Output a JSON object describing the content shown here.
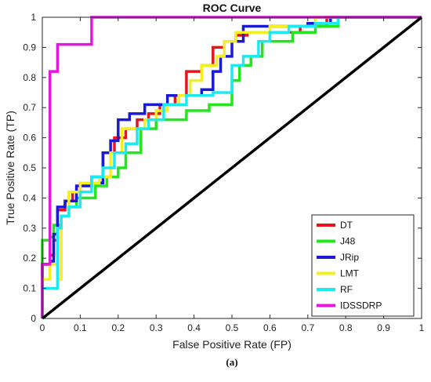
{
  "chart_data": {
    "type": "line",
    "title": "ROC Curve",
    "xlabel": "False Positive Rate (FP)",
    "ylabel": "True Positive Rate (TP)",
    "xlim": [
      0,
      1
    ],
    "ylim": [
      0,
      1
    ],
    "xticks": [
      "0",
      "0.1",
      "0.2",
      "0.3",
      "0.4",
      "0.5",
      "0.6",
      "0.7",
      "0.8",
      "0.9",
      "1"
    ],
    "yticks": [
      "0",
      "0.1",
      "0.2",
      "0.3",
      "0.4",
      "0.5",
      "0.6",
      "0.7",
      "0.8",
      "0.9",
      "1"
    ],
    "xtick_values": [
      0,
      0.1,
      0.2,
      0.3,
      0.4,
      0.5,
      0.6,
      0.7,
      0.8,
      0.9,
      1
    ],
    "ytick_values": [
      0,
      0.1,
      0.2,
      0.3,
      0.4,
      0.5,
      0.6,
      0.7,
      0.8,
      0.9,
      1
    ],
    "grid": false,
    "legend_position": "bottom-right",
    "caption": "(a)",
    "series": [
      {
        "name": "DT",
        "color": "#e8141c",
        "x": [
          0,
          0,
          0.02,
          0.02,
          0.03,
          0.03,
          0.04,
          0.04,
          0.06,
          0.06,
          0.08,
          0.08,
          0.1,
          0.1,
          0.13,
          0.13,
          0.16,
          0.16,
          0.19,
          0.19,
          0.22,
          0.22,
          0.25,
          0.25,
          0.28,
          0.28,
          0.31,
          0.31,
          0.35,
          0.35,
          0.38,
          0.38,
          0.42,
          0.42,
          0.45,
          0.45,
          0.48,
          0.48,
          0.51,
          0.51,
          0.54,
          0.54,
          0.58,
          0.58,
          0.62,
          0.62,
          0.68,
          0.68,
          0.75,
          0.75,
          1
        ],
        "y": [
          0,
          0.18,
          0.18,
          0.21,
          0.21,
          0.26,
          0.26,
          0.36,
          0.36,
          0.39,
          0.39,
          0.42,
          0.42,
          0.45,
          0.45,
          0.47,
          0.47,
          0.55,
          0.55,
          0.6,
          0.6,
          0.63,
          0.63,
          0.66,
          0.66,
          0.68,
          0.68,
          0.71,
          0.71,
          0.74,
          0.74,
          0.82,
          0.82,
          0.84,
          0.84,
          0.9,
          0.9,
          0.92,
          0.92,
          0.94,
          0.94,
          0.95,
          0.95,
          0.95,
          0.95,
          0.95,
          0.95,
          0.97,
          0.97,
          1,
          1
        ]
      },
      {
        "name": "J48",
        "color": "#23e61e",
        "x": [
          0,
          0,
          0.02,
          0.02,
          0.03,
          0.03,
          0.05,
          0.05,
          0.07,
          0.07,
          0.09,
          0.09,
          0.14,
          0.14,
          0.17,
          0.17,
          0.2,
          0.2,
          0.22,
          0.22,
          0.26,
          0.26,
          0.3,
          0.3,
          0.38,
          0.38,
          0.44,
          0.44,
          0.5,
          0.5,
          0.52,
          0.52,
          0.55,
          0.55,
          0.58,
          0.58,
          0.66,
          0.66,
          0.72,
          0.72,
          0.78,
          0.78,
          1
        ],
        "y": [
          0,
          0.26,
          0.26,
          0.27,
          0.27,
          0.31,
          0.31,
          0.34,
          0.34,
          0.37,
          0.37,
          0.4,
          0.4,
          0.44,
          0.44,
          0.47,
          0.47,
          0.5,
          0.5,
          0.55,
          0.55,
          0.63,
          0.63,
          0.66,
          0.66,
          0.69,
          0.69,
          0.71,
          0.71,
          0.79,
          0.79,
          0.84,
          0.84,
          0.87,
          0.87,
          0.92,
          0.92,
          0.95,
          0.95,
          0.97,
          0.97,
          1,
          1
        ]
      },
      {
        "name": "JRip",
        "color": "#1a1ad6",
        "x": [
          0,
          0,
          0.02,
          0.02,
          0.03,
          0.03,
          0.04,
          0.04,
          0.06,
          0.06,
          0.09,
          0.09,
          0.13,
          0.13,
          0.16,
          0.16,
          0.18,
          0.18,
          0.2,
          0.2,
          0.23,
          0.23,
          0.27,
          0.27,
          0.3,
          0.3,
          0.33,
          0.33,
          0.37,
          0.37,
          0.42,
          0.42,
          0.45,
          0.45,
          0.47,
          0.47,
          0.5,
          0.5,
          0.53,
          0.53,
          0.57,
          0.57,
          0.63,
          0.63,
          0.7,
          0.7,
          0.76,
          0.76,
          1
        ],
        "y": [
          0,
          0.18,
          0.18,
          0.19,
          0.19,
          0.28,
          0.28,
          0.37,
          0.37,
          0.39,
          0.39,
          0.44,
          0.44,
          0.45,
          0.45,
          0.55,
          0.55,
          0.59,
          0.59,
          0.66,
          0.66,
          0.68,
          0.68,
          0.71,
          0.71,
          0.71,
          0.71,
          0.74,
          0.74,
          0.74,
          0.74,
          0.76,
          0.76,
          0.82,
          0.82,
          0.87,
          0.87,
          0.92,
          0.92,
          0.97,
          0.97,
          0.97,
          0.97,
          0.97,
          0.97,
          0.98,
          0.98,
          1,
          1
        ]
      },
      {
        "name": "LMT",
        "color": "#f5ef1f",
        "x": [
          0,
          0,
          0.02,
          0.02,
          0.04,
          0.04,
          0.05,
          0.05,
          0.07,
          0.07,
          0.1,
          0.1,
          0.15,
          0.15,
          0.18,
          0.18,
          0.21,
          0.21,
          0.24,
          0.24,
          0.27,
          0.27,
          0.3,
          0.3,
          0.33,
          0.33,
          0.36,
          0.36,
          0.39,
          0.39,
          0.42,
          0.42,
          0.46,
          0.46,
          0.48,
          0.48,
          0.51,
          0.51,
          0.56,
          0.56,
          0.6,
          0.6,
          0.66,
          0.66,
          0.72,
          0.72,
          1
        ],
        "y": [
          0,
          0.13,
          0.13,
          0.18,
          0.18,
          0.13,
          0.13,
          0.34,
          0.34,
          0.42,
          0.42,
          0.45,
          0.45,
          0.47,
          0.47,
          0.55,
          0.55,
          0.63,
          0.63,
          0.63,
          0.63,
          0.66,
          0.66,
          0.69,
          0.69,
          0.71,
          0.71,
          0.74,
          0.74,
          0.79,
          0.79,
          0.84,
          0.84,
          0.87,
          0.87,
          0.92,
          0.92,
          0.95,
          0.95,
          0.95,
          0.95,
          0.97,
          0.97,
          0.97,
          0.97,
          1,
          1
        ]
      },
      {
        "name": "RF",
        "color": "#1ee8f0",
        "x": [
          0,
          0,
          0.02,
          0.02,
          0.04,
          0.04,
          0.05,
          0.05,
          0.07,
          0.07,
          0.1,
          0.1,
          0.13,
          0.13,
          0.16,
          0.16,
          0.19,
          0.19,
          0.22,
          0.22,
          0.25,
          0.25,
          0.28,
          0.28,
          0.32,
          0.32,
          0.38,
          0.38,
          0.45,
          0.45,
          0.5,
          0.5,
          0.53,
          0.53,
          0.57,
          0.57,
          0.6,
          0.6,
          0.65,
          0.65,
          0.72,
          0.72,
          0.78,
          0.78,
          1
        ],
        "y": [
          0,
          0.1,
          0.1,
          0.1,
          0.1,
          0.3,
          0.3,
          0.34,
          0.34,
          0.37,
          0.37,
          0.42,
          0.42,
          0.47,
          0.47,
          0.5,
          0.5,
          0.55,
          0.55,
          0.58,
          0.58,
          0.63,
          0.63,
          0.66,
          0.66,
          0.71,
          0.71,
          0.74,
          0.74,
          0.75,
          0.75,
          0.84,
          0.84,
          0.87,
          0.87,
          0.92,
          0.92,
          0.95,
          0.95,
          0.97,
          0.97,
          0.98,
          0.98,
          1,
          1
        ]
      },
      {
        "name": "IDSSDRP",
        "color": "#e815e0",
        "x": [
          0,
          0,
          0.02,
          0.02,
          0.03,
          0.03,
          0.04,
          0.04,
          0.07,
          0.07,
          0.13,
          0.13,
          0.18,
          1
        ],
        "y": [
          0,
          0.18,
          0.18,
          0.82,
          0.82,
          0.82,
          0.82,
          0.91,
          0.91,
          0.91,
          0.91,
          1,
          1,
          1
        ]
      },
      {
        "name": "",
        "color": "#000000",
        "x": [
          0,
          1
        ],
        "y": [
          0,
          1
        ]
      }
    ]
  }
}
